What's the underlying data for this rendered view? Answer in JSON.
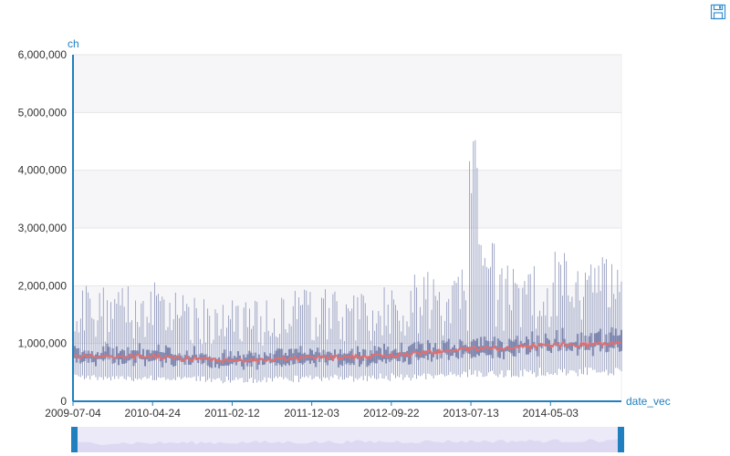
{
  "toolbar": {
    "save_icon": "save-icon"
  },
  "chart_data": {
    "type": "candlestick",
    "xlabel": "date_vec",
    "ylabel": "ch",
    "x_range": [
      "2009-07-04",
      "2015-01-20"
    ],
    "ylim": [
      0,
      6000000
    ],
    "y_ticks": [
      "0",
      "1,000,000",
      "2,000,000",
      "3,000,000",
      "4,000,000",
      "5,000,000",
      "6,000,000"
    ],
    "x_ticks": [
      "2009-07-04",
      "2010-04-24",
      "2011-02-12",
      "2011-12-03",
      "2012-09-22",
      "2013-07-13",
      "2014-05-03"
    ],
    "series_summary": {
      "typical_low": [
        350000,
        650000
      ],
      "typical_open_close": [
        600000,
        1100000
      ],
      "typical_high": [
        1000000,
        2700000
      ],
      "peak_high": 5000000,
      "peak_high_date": "2013-02-01",
      "median_close_trend": [
        {
          "x": "2009-07-04",
          "y": 780000
        },
        {
          "x": "2010-04-24",
          "y": 770000
        },
        {
          "x": "2011-02-12",
          "y": 700000
        },
        {
          "x": "2011-12-03",
          "y": 750000
        },
        {
          "x": "2012-09-22",
          "y": 790000
        },
        {
          "x": "2013-07-13",
          "y": 900000
        },
        {
          "x": "2014-05-03",
          "y": 970000
        },
        {
          "x": "2015-01-20",
          "y": 1000000
        }
      ]
    },
    "colors": {
      "candle": "#8a93b8",
      "candle_body": "#7b84ad",
      "median_line": "#e07070",
      "axis": "#1f7fbf",
      "plot_bg_band": "#f6f6f8"
    },
    "grid": true,
    "datazoom_slider": true
  }
}
